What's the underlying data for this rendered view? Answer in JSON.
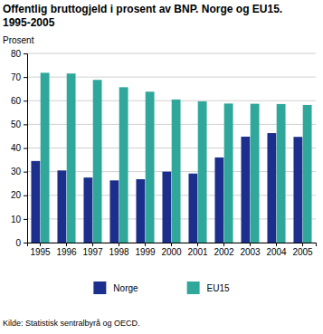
{
  "chart_data": {
    "type": "bar",
    "title": "Offentlig bruttogjeld i prosent av BNP. Norge og EU15. 1995-2005",
    "y_label": "Prosent",
    "annotations": [
      "Kilde: Statistisk sentralbyrå og OECD."
    ],
    "categories": [
      "1995",
      "1996",
      "1997",
      "1998",
      "1999",
      "2000",
      "2001",
      "2002",
      "2003",
      "2004",
      "2005"
    ],
    "series": [
      {
        "name": "Norge",
        "color": "#1c2f8c",
        "values": [
          34.5,
          30.5,
          27.5,
          26.3,
          26.8,
          30.0,
          29.2,
          36.0,
          44.8,
          46.3,
          44.7
        ]
      },
      {
        "name": "EU15",
        "color": "#2fa79a",
        "values": [
          71.8,
          71.5,
          68.8,
          65.7,
          63.8,
          60.5,
          59.7,
          58.8,
          58.7,
          58.6,
          58.2
        ]
      }
    ],
    "ylim": [
      0,
      80
    ],
    "yticks": [
      0,
      10,
      20,
      30,
      40,
      50,
      60,
      70,
      80
    ],
    "grid": true,
    "legend": "bottom"
  }
}
